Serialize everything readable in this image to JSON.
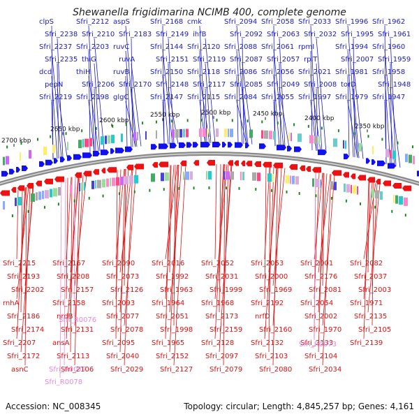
{
  "title": "Shewanella frigidimarina NCIMB 400, complete genome",
  "accession": "Accession: NC_008345",
  "summary": "Topology: circular; Length: 4,845,257 bp; Genes: 4,161",
  "colors": {
    "plus_label": "#1a1acc",
    "minus_label": "#dd1111",
    "rna_label": "#e68ad8",
    "plus_gene": "#1111ee",
    "minus_gene": "#ee1111",
    "backbone": "#8a8a8a",
    "marker": "#1a8a1a"
  },
  "scale_ticks": [
    "2700 kbp",
    "2650 kbp",
    "2600 kbp",
    "2550 kbp",
    "2500 kbp",
    "2450 kbp",
    "2400 kbp",
    "2350 kbp"
  ],
  "plus_labels": [
    "clpS",
    "Sfri_2238",
    "Sfri_2237",
    "Sfri_2235",
    "dcd",
    "pepN",
    "Sfri_2219",
    "Sfri_2212",
    "Sfri_2210",
    "Sfri_2203",
    "thiG",
    "thiH",
    "Sfri_2206",
    "Sfri_2198",
    "aspS",
    "Sfri_2183",
    "ruvC",
    "ruvA",
    "ruvB",
    "Sfri_2170",
    "glgC",
    "Sfri_2168",
    "Sfri_2149",
    "Sfri_2144",
    "Sfri_2151",
    "Sfri_2150",
    "Sfri_2148",
    "Sfri_2147",
    "cmk",
    "ihfB",
    "Sfri_2120",
    "Sfri_2119",
    "Sfri_2118",
    "Sfri_2117",
    "Sfri_2115",
    "Sfri_2094",
    "Sfri_2092",
    "Sfri_2088",
    "Sfri_2087",
    "Sfri_2086",
    "Sfri_2085",
    "Sfri_2084",
    "Sfri_2058",
    "Sfri_2063",
    "Sfri_2061",
    "Sfri_2057",
    "Sfri_2056",
    "Sfri_2049",
    "Sfri_2055",
    "Sfri_2033",
    "Sfri_2032",
    "rpmI",
    "rplT",
    "Sfri_2021",
    "Sfri_2008",
    "Sfri_1997",
    "Sfri_1996",
    "Sfri_1995",
    "Sfri_1994",
    "Sfri_2007",
    "Sfri_1981",
    "torD",
    "Sfri_1979",
    "Sfri_1962",
    "Sfri_1961",
    "Sfri_1960",
    "Sfri_1959",
    "Sfri_1958",
    "Sfri_1948",
    "Sfri_1947"
  ],
  "minus_labels": [
    "Sfri_2215",
    "Sfri_2193",
    "Sfri_2202",
    "rnhA",
    "Sfri_2186",
    "Sfri_2174",
    "Sfri_2207",
    "Sfri_2172",
    "asnC",
    "Sfri_2167",
    "Sfri_2208",
    "Sfri_2157",
    "Sfri_2158",
    "nrdB",
    "Sfri_2131",
    "ansA",
    "Sfri_2113",
    "Sfri_2106",
    "Sfri_2090",
    "Sfri_2073",
    "Sfri_2126",
    "Sfri_2093",
    "Sfri_2077",
    "Sfri_2078",
    "Sfri_2095",
    "Sfri_2040",
    "Sfri_2029",
    "Sfri_2016",
    "Sfri_1992",
    "Sfri_1963",
    "Sfri_1964",
    "Sfri_2051",
    "Sfri_1998",
    "Sfri_1965",
    "Sfri_2152",
    "Sfri_2127",
    "Sfri_2052",
    "Sfri_2031",
    "Sfri_1999",
    "Sfri_1968",
    "Sfri_2173",
    "Sfri_2159",
    "Sfri_2128",
    "Sfri_2097",
    "Sfri_2079",
    "Sfri_2053",
    "Sfri_2000",
    "Sfri_1969",
    "Sfri_2192",
    "nrfD",
    "Sfri_2160",
    "Sfri_2132",
    "Sfri_2103",
    "Sfri_2080",
    "Sfri_2001",
    "Sfri_2176",
    "Sfri_2081",
    "Sfri_2054",
    "Sfri_2002",
    "Sfri_1970",
    "Sfri_2133",
    "Sfri_2104",
    "Sfri_2034",
    "Sfri_2082",
    "Sfri_2037",
    "Sfri_2003",
    "Sfri_1971",
    "Sfri_2135",
    "Sfri_2105",
    "Sfri_2139"
  ],
  "rna_labels": [
    "Sfri_R0076",
    "Sfri_R0077",
    "Sfri_R0078",
    "Sfri_R0073"
  ]
}
